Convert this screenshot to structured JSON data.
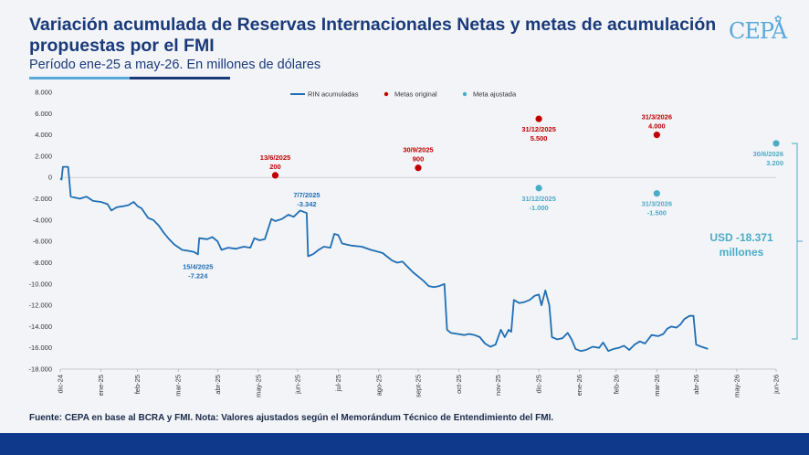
{
  "header": {
    "title": "Variación acumulada de Reservas Internacionales Netas y metas de acumulación propuestas por el FMI",
    "subtitle": "Período ene-25 a may-26. En millones de dólares",
    "logo": "CEPA"
  },
  "footer": {
    "source": "Fuente: CEPA en base al BCRA y FMI. Nota: Valores ajustados según el Memorándum Técnico de Entendimiento del FMI."
  },
  "colors": {
    "line": "#1f6eb5",
    "original": "#c00000",
    "adjusted": "#4bacc6",
    "title": "#1a3a7a"
  },
  "chart_data": {
    "type": "line",
    "ylim": [
      -18000,
      8000
    ],
    "yticks": [
      8000,
      6000,
      4000,
      2000,
      0,
      -2000,
      -4000,
      -6000,
      -8000,
      -10000,
      -12000,
      -14000,
      -16000,
      -18000
    ],
    "ytick_labels": [
      "8.000",
      "6.000",
      "4.000",
      "2.000",
      "0",
      "-2.000",
      "-4.000",
      "-6.000",
      "-8.000",
      "-10.000",
      "-12.000",
      "-14.000",
      "-16.000",
      "-18.000"
    ],
    "xlim": [
      "2024-12-31",
      "2026-06-30"
    ],
    "xticks": [
      "2024-12-31",
      "2025-01-31",
      "2025-02-28",
      "2025-03-31",
      "2025-04-30",
      "2025-05-31",
      "2025-06-30",
      "2025-07-31",
      "2025-08-31",
      "2025-09-30",
      "2025-10-31",
      "2025-11-30",
      "2025-12-31",
      "2026-01-31",
      "2026-02-28",
      "2026-03-31",
      "2026-04-30",
      "2026-05-31",
      "2026-06-30"
    ],
    "xtick_labels": [
      "dic-24",
      "ene-25",
      "feb-25",
      "mar-25",
      "abr-25",
      "may-25",
      "jun-25",
      "jul-25",
      "ago-25",
      "sept-25",
      "oct-25",
      "nov-25",
      "dic-25",
      "ene-26",
      "feb-26",
      "mar-26",
      "abr-26",
      "may-26",
      "jun-26"
    ],
    "grid": false,
    "legend_position": "top-center",
    "series": [
      {
        "name": "RIN acumuladas",
        "style": "line",
        "points": [
          [
            "2024-12-31",
            -100
          ],
          [
            "2025-01-01",
            -200
          ],
          [
            "2025-01-02",
            1000
          ],
          [
            "2025-01-06",
            1000
          ],
          [
            "2025-01-08",
            -1800
          ],
          [
            "2025-01-15",
            -2000
          ],
          [
            "2025-01-20",
            -1800
          ],
          [
            "2025-01-25",
            -2200
          ],
          [
            "2025-01-31",
            -2300
          ],
          [
            "2025-02-05",
            -2500
          ],
          [
            "2025-02-08",
            -3100
          ],
          [
            "2025-02-12",
            -2800
          ],
          [
            "2025-02-17",
            -2700
          ],
          [
            "2025-02-21",
            -2600
          ],
          [
            "2025-02-25",
            -2300
          ],
          [
            "2025-02-28",
            -2700
          ],
          [
            "2025-03-03",
            -2900
          ],
          [
            "2025-03-08",
            -3800
          ],
          [
            "2025-03-12",
            -4000
          ],
          [
            "2025-03-16",
            -4500
          ],
          [
            "2025-03-20",
            -5200
          ],
          [
            "2025-03-24",
            -5800
          ],
          [
            "2025-03-28",
            -6300
          ],
          [
            "2025-04-03",
            -6800
          ],
          [
            "2025-04-08",
            -6900
          ],
          [
            "2025-04-12",
            -7000
          ],
          [
            "2025-04-15",
            -7224
          ],
          [
            "2025-04-16",
            -5700
          ],
          [
            "2025-04-22",
            -5800
          ],
          [
            "2025-04-26",
            -5600
          ],
          [
            "2025-04-30",
            -6000
          ],
          [
            "2025-05-03",
            -6800
          ],
          [
            "2025-05-08",
            -6600
          ],
          [
            "2025-05-14",
            -6700
          ],
          [
            "2025-05-20",
            -6500
          ],
          [
            "2025-05-25",
            -6600
          ],
          [
            "2025-05-28",
            -5700
          ],
          [
            "2025-06-01",
            -5900
          ],
          [
            "2025-06-05",
            -5800
          ],
          [
            "2025-06-10",
            -3900
          ],
          [
            "2025-06-13",
            -4100
          ],
          [
            "2025-06-18",
            -3900
          ],
          [
            "2025-06-23",
            -3500
          ],
          [
            "2025-06-27",
            -3700
          ],
          [
            "2025-07-02",
            -3100
          ],
          [
            "2025-07-07",
            -3342
          ],
          [
            "2025-07-08",
            -7400
          ],
          [
            "2025-07-12",
            -7200
          ],
          [
            "2025-07-16",
            -6800
          ],
          [
            "2025-07-20",
            -6500
          ],
          [
            "2025-07-25",
            -6600
          ],
          [
            "2025-07-28",
            -5300
          ],
          [
            "2025-07-31",
            -5400
          ],
          [
            "2025-08-03",
            -6200
          ],
          [
            "2025-08-10",
            -6400
          ],
          [
            "2025-08-18",
            -6500
          ],
          [
            "2025-08-25",
            -6800
          ],
          [
            "2025-08-31",
            -7000
          ],
          [
            "2025-09-03",
            -7100
          ],
          [
            "2025-09-06",
            -7400
          ],
          [
            "2025-09-10",
            -7800
          ],
          [
            "2025-09-14",
            -8000
          ],
          [
            "2025-09-18",
            -7900
          ],
          [
            "2025-09-22",
            -8400
          ],
          [
            "2025-09-26",
            -8900
          ],
          [
            "2025-09-30",
            -9300
          ],
          [
            "2025-10-04",
            -9700
          ],
          [
            "2025-10-08",
            -10200
          ],
          [
            "2025-10-12",
            -10300
          ],
          [
            "2025-10-16",
            -10200
          ],
          [
            "2025-10-20",
            -10000
          ],
          [
            "2025-10-22",
            -14300
          ],
          [
            "2025-10-25",
            -14600
          ],
          [
            "2025-10-30",
            -14700
          ],
          [
            "2025-11-04",
            -14800
          ],
          [
            "2025-11-08",
            -14700
          ],
          [
            "2025-11-12",
            -14800
          ],
          [
            "2025-11-16",
            -15000
          ],
          [
            "2025-11-20",
            -15600
          ],
          [
            "2025-11-24",
            -15900
          ],
          [
            "2025-11-28",
            -15700
          ],
          [
            "2025-12-02",
            -14300
          ],
          [
            "2025-12-05",
            -15000
          ],
          [
            "2025-12-08",
            -14300
          ],
          [
            "2025-12-10",
            -14500
          ],
          [
            "2025-12-12",
            -11500
          ],
          [
            "2025-12-16",
            -11800
          ],
          [
            "2025-12-20",
            -11700
          ],
          [
            "2025-12-24",
            -11500
          ],
          [
            "2025-12-28",
            -11100
          ],
          [
            "2025-12-31",
            -11000
          ],
          [
            "2026-01-02",
            -12000
          ],
          [
            "2026-01-05",
            -10600
          ],
          [
            "2026-01-08",
            -12000
          ],
          [
            "2026-01-10",
            -15000
          ],
          [
            "2026-01-14",
            -15200
          ],
          [
            "2026-01-18",
            -15100
          ],
          [
            "2026-01-22",
            -14600
          ],
          [
            "2026-01-25",
            -15200
          ],
          [
            "2026-01-28",
            -16100
          ],
          [
            "2026-02-01",
            -16300
          ],
          [
            "2026-02-05",
            -16200
          ],
          [
            "2026-02-10",
            -15900
          ],
          [
            "2026-02-15",
            -16000
          ],
          [
            "2026-02-18",
            -15500
          ],
          [
            "2026-02-22",
            -16300
          ],
          [
            "2026-02-26",
            -16100
          ],
          [
            "2026-03-02",
            -16000
          ],
          [
            "2026-03-06",
            -15800
          ],
          [
            "2026-03-10",
            -16200
          ],
          [
            "2026-03-14",
            -15700
          ],
          [
            "2026-03-18",
            -15400
          ],
          [
            "2026-03-22",
            -15600
          ],
          [
            "2026-03-27",
            -14800
          ],
          [
            "2026-04-01",
            -14900
          ],
          [
            "2026-04-05",
            -14700
          ],
          [
            "2026-04-08",
            -14200
          ],
          [
            "2026-04-11",
            -14000
          ],
          [
            "2026-04-15",
            -14100
          ],
          [
            "2026-04-18",
            -13800
          ],
          [
            "2026-04-21",
            -13300
          ],
          [
            "2026-04-25",
            -13000
          ],
          [
            "2026-04-28",
            -13000
          ],
          [
            "2026-04-30",
            -15700
          ],
          [
            "2026-05-04",
            -15900
          ],
          [
            "2026-05-09",
            -16100
          ]
        ]
      },
      {
        "name": "Metas original",
        "style": "marker",
        "points": [
          [
            "2025-06-13",
            200
          ],
          [
            "2025-09-30",
            900
          ],
          [
            "2025-12-31",
            5500
          ],
          [
            "2026-03-31",
            4000
          ]
        ]
      },
      {
        "name": "Meta ajustada",
        "style": "marker",
        "points": [
          [
            "2025-12-31",
            -1000
          ],
          [
            "2026-03-31",
            -1500
          ],
          [
            "2026-06-30",
            3200
          ]
        ]
      }
    ],
    "annotations": [
      {
        "date": "2025-04-15",
        "value": -7224,
        "label_date": "15/4/2025",
        "label_value": "-7.224",
        "series": "RIN acumuladas",
        "side": "below"
      },
      {
        "date": "2025-07-07",
        "value": -3342,
        "label_date": "7/7/2025",
        "label_value": "-3.342",
        "series": "RIN acumuladas",
        "side": "above"
      },
      {
        "date": "2025-06-13",
        "value": 200,
        "label_date": "13/6/2025",
        "label_value": "200",
        "series": "Metas original",
        "side": "above"
      },
      {
        "date": "2025-09-30",
        "value": 900,
        "label_date": "30/9/2025",
        "label_value": "900",
        "series": "Metas original",
        "side": "above"
      },
      {
        "date": "2025-12-31",
        "value": 5500,
        "label_date": "31/12/2025",
        "label_value": "5.500",
        "series": "Metas original",
        "side": "below"
      },
      {
        "date": "2026-03-31",
        "value": 4000,
        "label_date": "31/3/2026",
        "label_value": "4.000",
        "series": "Metas original",
        "side": "above"
      },
      {
        "date": "2025-12-31",
        "value": -1000,
        "label_date": "31/12/2025",
        "label_value": "-1.000",
        "series": "Meta ajustada",
        "side": "below"
      },
      {
        "date": "2026-03-31",
        "value": -1500,
        "label_date": "31/3/2026",
        "label_value": "-1.500",
        "series": "Meta ajustada",
        "side": "below"
      },
      {
        "date": "2026-06-30",
        "value": 3200,
        "label_date": "30/6/2026",
        "label_value": "3.200",
        "series": "Meta ajustada",
        "side": "below"
      }
    ],
    "gap_callout": {
      "label_line1": "USD -18.371",
      "label_line2": "millones",
      "from_value": 3200,
      "to_value": -15171
    }
  }
}
